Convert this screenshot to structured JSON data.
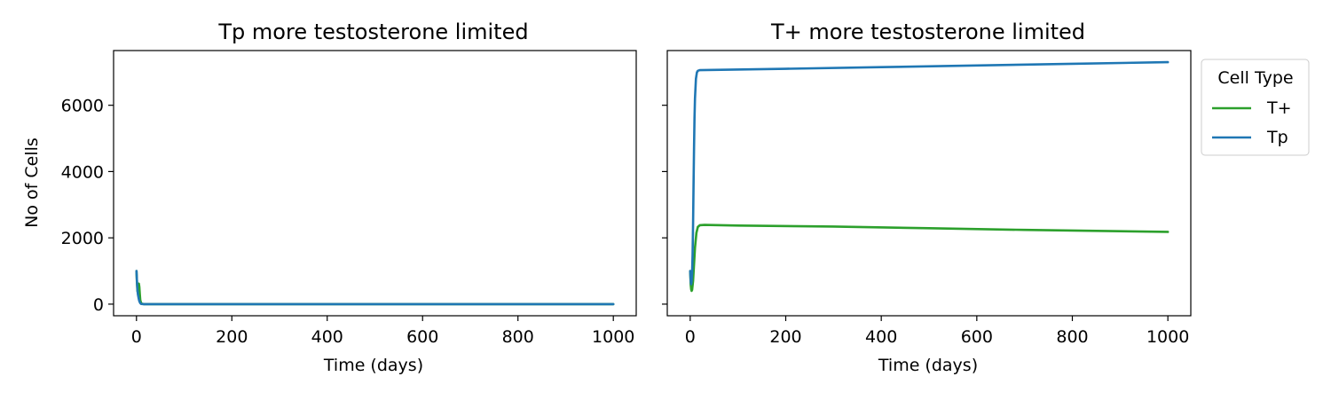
{
  "chart_data": [
    {
      "type": "line",
      "title": "Tp more testosterone limited",
      "xlabel": "Time (days)",
      "ylabel": "No of Cells",
      "xlim": [
        -48,
        1048
      ],
      "ylim": [
        -350,
        7650
      ],
      "xticks": [
        0,
        200,
        400,
        600,
        800,
        1000
      ],
      "yticks": [
        0,
        2000,
        4000,
        6000
      ],
      "series": [
        {
          "name": "T+",
          "color": "#2ca02c",
          "points": [
            [
              0,
              1000
            ],
            [
              1,
              650
            ],
            [
              2,
              400
            ],
            [
              3,
              350
            ],
            [
              4,
              500
            ],
            [
              5,
              620
            ],
            [
              6,
              520
            ],
            [
              7,
              300
            ],
            [
              8,
              120
            ],
            [
              10,
              20
            ],
            [
              15,
              0
            ],
            [
              1000,
              0
            ]
          ]
        },
        {
          "name": "Tp",
          "color": "#1f77b4",
          "points": [
            [
              0,
              1000
            ],
            [
              1,
              700
            ],
            [
              2,
              450
            ],
            [
              3,
              300
            ],
            [
              4,
              220
            ],
            [
              5,
              150
            ],
            [
              6,
              90
            ],
            [
              8,
              30
            ],
            [
              10,
              5
            ],
            [
              15,
              0
            ],
            [
              1000,
              0
            ]
          ]
        }
      ]
    },
    {
      "type": "line",
      "title": "T+ more testosterone limited",
      "xlabel": "Time (days)",
      "ylabel": "",
      "xlim": [
        -48,
        1048
      ],
      "ylim": [
        -350,
        7650
      ],
      "xticks": [
        0,
        200,
        400,
        600,
        800,
        1000
      ],
      "yticks": [
        0,
        2000,
        4000,
        6000
      ],
      "legend": {
        "title": "Cell Type",
        "placement": "upper-right-outside"
      },
      "series": [
        {
          "name": "T+",
          "color": "#2ca02c",
          "points": [
            [
              0,
              1000
            ],
            [
              1,
              600
            ],
            [
              2,
              450
            ],
            [
              3,
              400
            ],
            [
              4,
              430
            ],
            [
              6,
              700
            ],
            [
              8,
              1200
            ],
            [
              10,
              1700
            ],
            [
              13,
              2150
            ],
            [
              16,
              2330
            ],
            [
              20,
              2380
            ],
            [
              30,
              2390
            ],
            [
              100,
              2370
            ],
            [
              300,
              2340
            ],
            [
              500,
              2290
            ],
            [
              700,
              2240
            ],
            [
              900,
              2200
            ],
            [
              1000,
              2180
            ]
          ]
        },
        {
          "name": "Tp",
          "color": "#1f77b4",
          "points": [
            [
              0,
              1000
            ],
            [
              1,
              700
            ],
            [
              2,
              600
            ],
            [
              3,
              700
            ],
            [
              4,
              950
            ],
            [
              5,
              1500
            ],
            [
              6,
              2400
            ],
            [
              7,
              3600
            ],
            [
              8,
              4700
            ],
            [
              9,
              5600
            ],
            [
              10,
              6200
            ],
            [
              12,
              6800
            ],
            [
              14,
              6990
            ],
            [
              16,
              7040
            ],
            [
              20,
              7060
            ],
            [
              50,
              7065
            ],
            [
              200,
              7100
            ],
            [
              400,
              7150
            ],
            [
              600,
              7200
            ],
            [
              800,
              7250
            ],
            [
              1000,
              7300
            ]
          ]
        }
      ]
    }
  ]
}
